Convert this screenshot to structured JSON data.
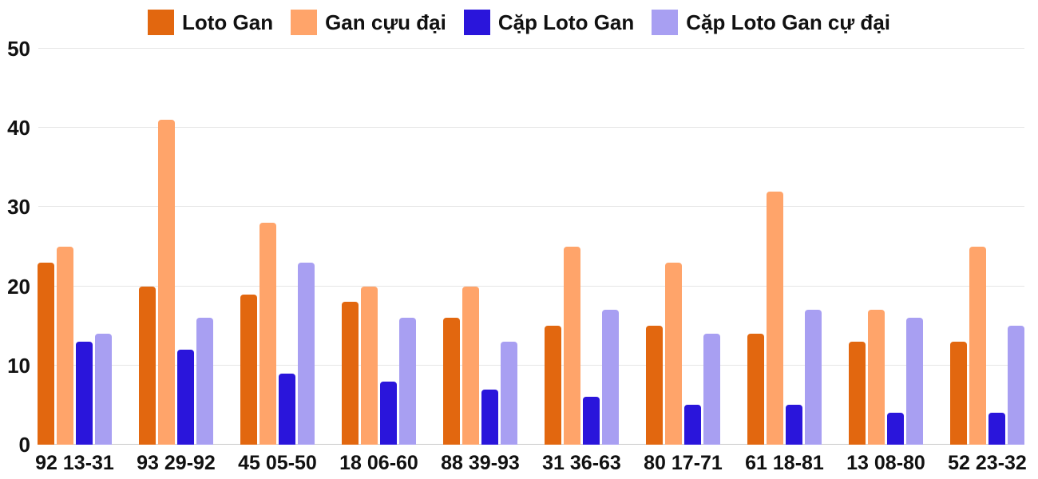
{
  "chart_data": {
    "type": "bar",
    "grouped": true,
    "title": "",
    "xlabel": "",
    "ylabel": "",
    "grid": true,
    "grid_color": "#e6e6e6",
    "baseline_color": "#c9c9c9",
    "text_color": "#111111",
    "legend_position": "top",
    "ylim": [
      0,
      50
    ],
    "yticks": [
      0,
      10,
      20,
      30,
      40,
      50
    ],
    "categories": [
      "92 13-31",
      "93 29-92",
      "45 05-50",
      "18 06-60",
      "88 39-93",
      "31 36-63",
      "80 17-71",
      "61 18-81",
      "13 08-80",
      "52 23-32"
    ],
    "series": [
      {
        "name": "Loto Gan",
        "color": "#e2670f",
        "values": [
          23,
          20,
          19,
          18,
          16,
          15,
          15,
          14,
          13,
          13
        ]
      },
      {
        "name": "Gan cựu đại",
        "color": "#ffa46a",
        "values": [
          25,
          41,
          28,
          20,
          20,
          25,
          23,
          32,
          17,
          25
        ]
      },
      {
        "name": "Cặp Loto Gan",
        "color": "#2a15db",
        "values": [
          13,
          12,
          9,
          8,
          7,
          6,
          5,
          5,
          4,
          4
        ]
      },
      {
        "name": "Cặp Loto Gan cự đại",
        "color": "#a89ff2",
        "values": [
          14,
          16,
          23,
          16,
          13,
          17,
          14,
          17,
          16,
          15
        ]
      }
    ]
  }
}
